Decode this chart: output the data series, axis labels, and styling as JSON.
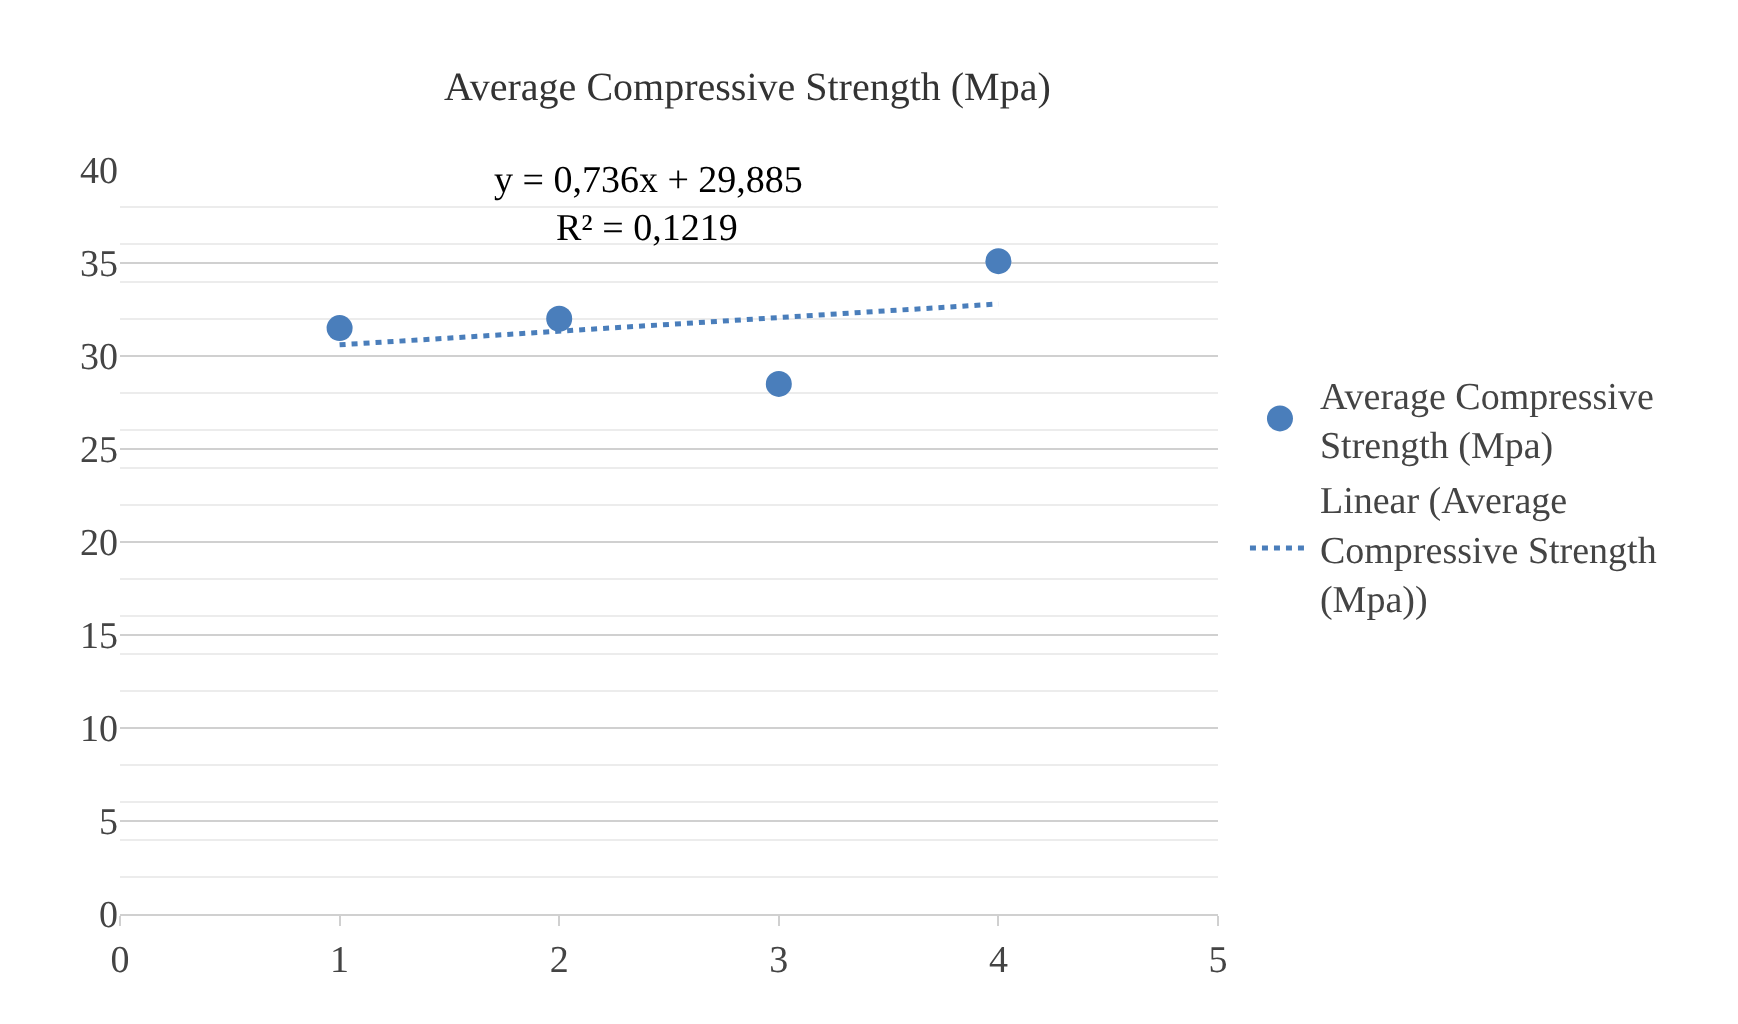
{
  "chart_data": {
    "type": "scatter",
    "title": "Average Compressive Strength (Mpa)",
    "x": [
      1,
      2,
      3,
      4
    ],
    "series": [
      {
        "name": "Average Compressive Strength (Mpa)",
        "color": "#4a7ebb",
        "values": [
          31.5,
          32,
          28.5,
          35.1
        ],
        "marker": "circle"
      },
      {
        "name": "Linear (Average Compressive Strength (Mpa))",
        "type": "line",
        "color": "#4a7ebb",
        "x": [
          1,
          4
        ],
        "values": [
          30.6,
          32.8
        ],
        "line_style": "dotted",
        "marker": "none"
      }
    ],
    "xlim": [
      0,
      5
    ],
    "xticks": [
      0,
      1,
      2,
      3,
      4,
      5
    ],
    "ylim": [
      0,
      40
    ],
    "yticks": [
      0,
      5,
      10,
      15,
      20,
      25,
      30,
      35,
      40
    ],
    "grid": "y",
    "legend": "right",
    "annotations": [
      "y = 0,736x + 29,885",
      "R² = 0,1219"
    ]
  }
}
